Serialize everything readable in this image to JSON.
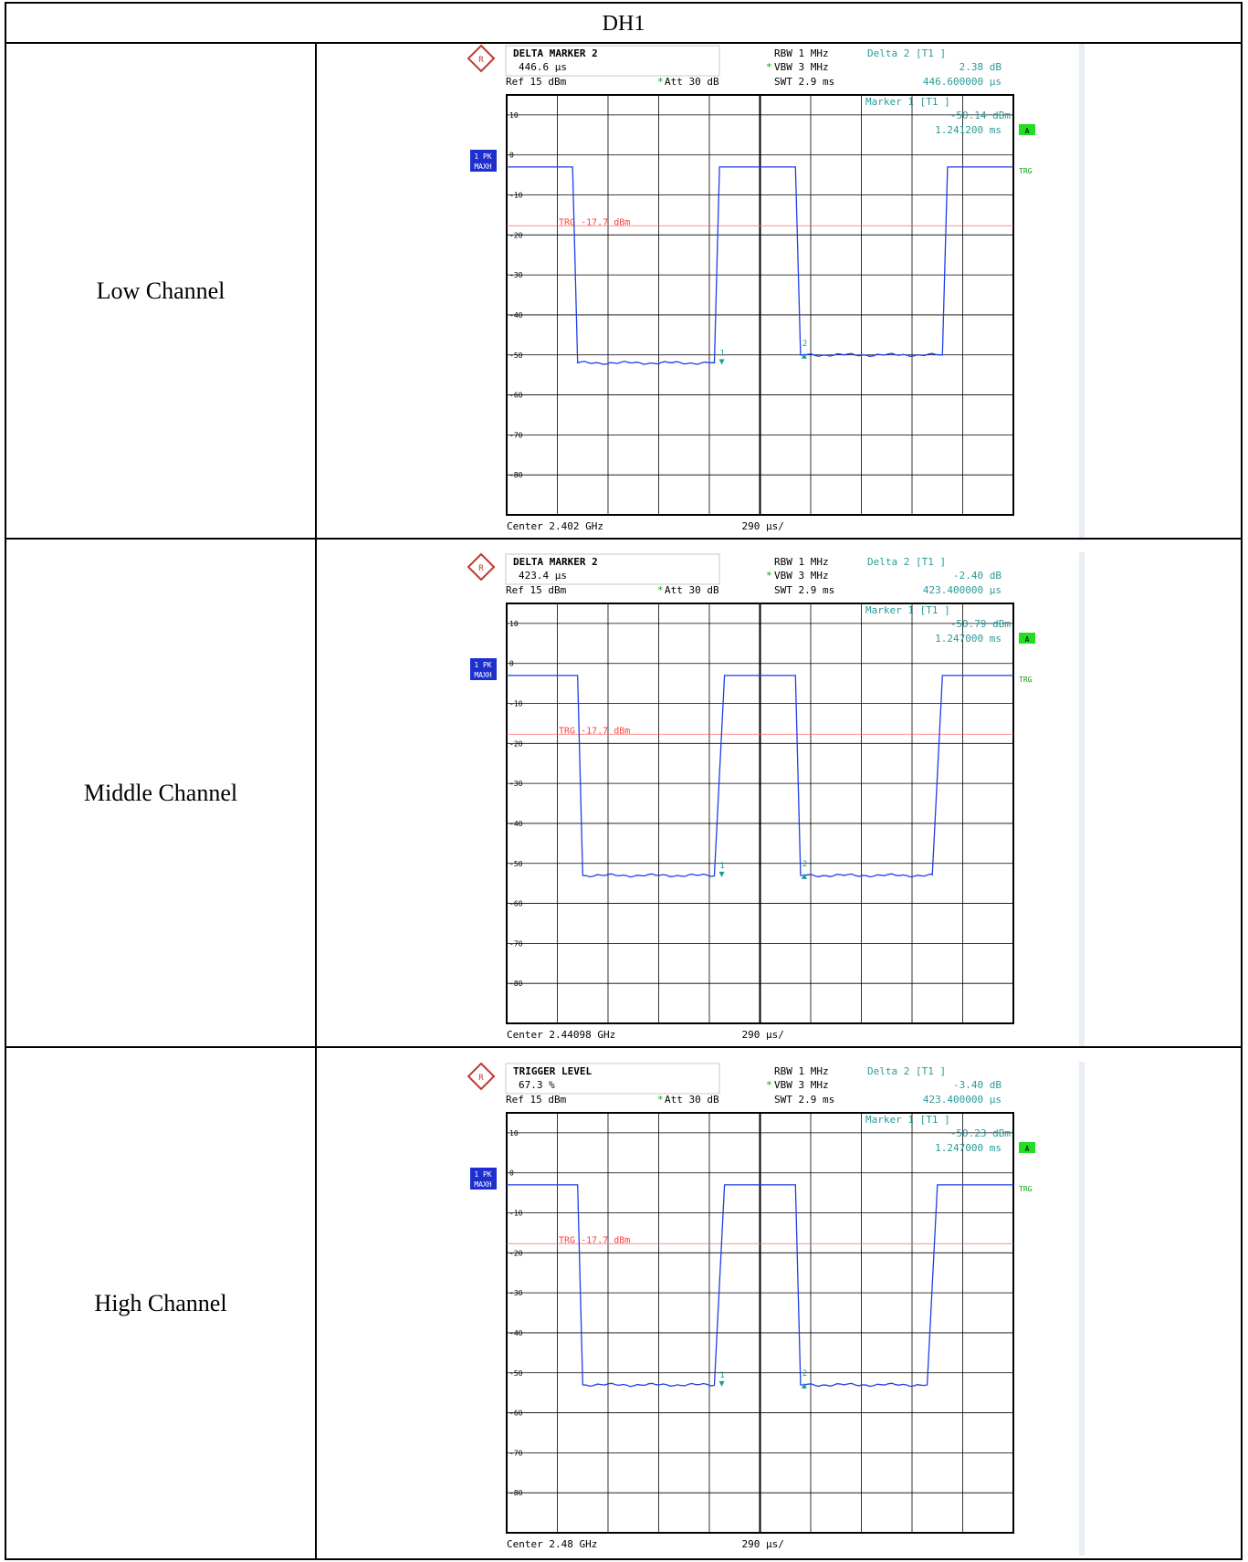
{
  "table_title": "DH1",
  "rows": [
    {
      "channel": "Low Channel",
      "box_title": "DELTA MARKER 2",
      "box_value": "446.6 µs",
      "ref": "Ref  15 dBm",
      "att": "Att  30 dB",
      "rbw": "RBW 1 MHz",
      "vbw": "VBW 3 MHz",
      "swt": "SWT 2.9 ms",
      "delta_title": "Delta 2 [T1 ]",
      "delta_db": "2.38 dB",
      "delta_time": "446.600000 µs",
      "marker_title": "Marker 1 [T1 ]",
      "marker_db": "-50.14 dBm",
      "marker_time": "1.241200 ms",
      "trg_text": "TRG -17.7 dBm",
      "center": "Center 2.402 GHz",
      "span": "290 µs/",
      "y_ticks": [
        "10",
        "0",
        "-10",
        "-20",
        "-30",
        "-40",
        "-50",
        "-60",
        "-70",
        "-80"
      ],
      "trace_badge_1": "1 PK",
      "trace_badge_2": "MAXH",
      "side_a": "A",
      "side_trg": "TRG",
      "marker1_label": "1",
      "marker2_label": "2",
      "chart_data": {
        "type": "line",
        "xlabel": "Center 2.402 GHz",
        "ylabel": "",
        "x_per_div": "290 µs/",
        "ylim": [
          -90,
          15
        ],
        "trigger_level_dbm": -17.7,
        "series": [
          {
            "segments": [
              [
                0,
                -3
              ],
              [
                0.13,
                -3
              ],
              [
                0.14,
                -52
              ],
              [
                0.41,
                -52
              ],
              [
                0.42,
                -3
              ],
              [
                0.57,
                -3
              ],
              [
                0.58,
                -50
              ],
              [
                0.86,
                -50
              ],
              [
                0.87,
                -3
              ],
              [
                1,
                -3
              ]
            ]
          }
        ]
      }
    },
    {
      "channel": "Middle Channel",
      "box_title": "DELTA MARKER 2",
      "box_value": "423.4 µs",
      "ref": "Ref  15 dBm",
      "att": "Att  30 dB",
      "rbw": "RBW 1 MHz",
      "vbw": "VBW 3 MHz",
      "swt": "SWT 2.9 ms",
      "delta_title": "Delta 2 [T1 ]",
      "delta_db": "-2.40 dB",
      "delta_time": "423.400000 µs",
      "marker_title": "Marker 1 [T1 ]",
      "marker_db": "-50.79 dBm",
      "marker_time": "1.247000 ms",
      "trg_text": "TRG -17.7 dBm",
      "center": "Center 2.44098 GHz",
      "span": "290 µs/",
      "y_ticks": [
        "10",
        "0",
        "-10",
        "-20",
        "-30",
        "-40",
        "-50",
        "-60",
        "-70",
        "-80"
      ],
      "trace_badge_1": "1 PK",
      "trace_badge_2": "MAXH",
      "side_a": "A",
      "side_trg": "TRG",
      "marker1_label": "1",
      "marker2_label": "2",
      "chart_data": {
        "type": "line",
        "xlabel": "Center 2.44098 GHz",
        "ylabel": "",
        "x_per_div": "290 µs/",
        "ylim": [
          -90,
          15
        ],
        "trigger_level_dbm": -17.7,
        "series": [
          {
            "segments": [
              [
                0,
                -3
              ],
              [
                0.14,
                -3
              ],
              [
                0.15,
                -53
              ],
              [
                0.41,
                -53
              ],
              [
                0.43,
                -3
              ],
              [
                0.57,
                -3
              ],
              [
                0.58,
                -53
              ],
              [
                0.84,
                -53
              ],
              [
                0.86,
                -3
              ],
              [
                1,
                -3
              ]
            ]
          }
        ]
      }
    },
    {
      "channel": "High Channel",
      "box_title": "TRIGGER LEVEL",
      "box_value": "67.3 %",
      "ref": "Ref  15 dBm",
      "att": "Att  30 dB",
      "rbw": "RBW 1 MHz",
      "vbw": "VBW 3 MHz",
      "swt": "SWT 2.9 ms",
      "delta_title": "Delta 2 [T1 ]",
      "delta_db": "-3.40 dB",
      "delta_time": "423.400000 µs",
      "marker_title": "Marker 1 [T1 ]",
      "marker_db": "-50.23 dBm",
      "marker_time": "1.247000 ms",
      "trg_text": "TRG -17.7 dBm",
      "center": "Center 2.48 GHz",
      "span": "290 µs/",
      "y_ticks": [
        "10",
        "0",
        "-10",
        "-20",
        "-30",
        "-40",
        "-50",
        "-60",
        "-70",
        "-80"
      ],
      "trace_badge_1": "1 PK",
      "trace_badge_2": "MAXH",
      "side_a": "A",
      "side_trg": "TRG",
      "marker1_label": "1",
      "marker2_label": "2",
      "chart_data": {
        "type": "line",
        "xlabel": "Center 2.48 GHz",
        "ylabel": "",
        "x_per_div": "290 µs/",
        "ylim": [
          -90,
          15
        ],
        "trigger_level_dbm": -17.7,
        "series": [
          {
            "segments": [
              [
                0,
                -3
              ],
              [
                0.14,
                -3
              ],
              [
                0.15,
                -53
              ],
              [
                0.41,
                -53
              ],
              [
                0.43,
                -3
              ],
              [
                0.57,
                -3
              ],
              [
                0.58,
                -53
              ],
              [
                0.83,
                -53
              ],
              [
                0.85,
                -3
              ],
              [
                1,
                -3
              ]
            ]
          }
        ]
      }
    }
  ]
}
